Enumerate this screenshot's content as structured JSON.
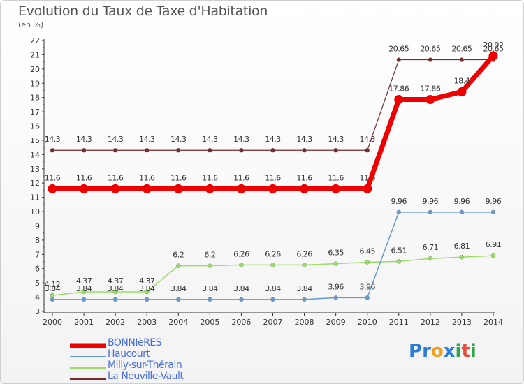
{
  "title": "Evolution du Taux de Taxe d'Habitation",
  "subtitle": "(en %)",
  "brand": {
    "name": "Proxiti",
    "letters": [
      "P",
      "r",
      "o",
      "x",
      "i",
      "t",
      "i"
    ],
    "colors": [
      "#2b7bd8",
      "#2b7bd8",
      "#f0a020",
      "#2b7bd8",
      "#2aa84a",
      "#e84c3d",
      "#2aa84a"
    ]
  },
  "chart_data": {
    "type": "line",
    "title": "Evolution du Taux de Taxe d'Habitation",
    "ylabel": "(en %)",
    "xlabel": "",
    "x": [
      "2000",
      "2001",
      "2002",
      "2003",
      "2004",
      "2005",
      "2006",
      "2007",
      "2008",
      "2009",
      "2010",
      "2011",
      "2012",
      "2013",
      "2014"
    ],
    "ylim": [
      3,
      22
    ],
    "yticks": [
      3,
      4,
      5,
      6,
      7,
      8,
      9,
      10,
      11,
      12,
      13,
      14,
      15,
      16,
      17,
      18,
      19,
      20,
      21,
      22
    ],
    "grid": false,
    "legend_position": "bottom-left",
    "series": [
      {
        "name": "BONNIèRES",
        "color": "#ee0000",
        "values": [
          11.6,
          11.6,
          11.6,
          11.6,
          11.6,
          11.6,
          11.6,
          11.6,
          11.6,
          11.6,
          11.6,
          17.86,
          17.86,
          18.4,
          20.92
        ],
        "labels": [
          "11.6",
          "11.6",
          "11.6",
          "11.6",
          "11.6",
          "11.6",
          "11.6",
          "11.6",
          "11.6",
          "11.6",
          "11.6",
          "17.86",
          "17.86",
          "18.4",
          "20.92"
        ]
      },
      {
        "name": "Haucourt",
        "color": "#6699cc",
        "values": [
          3.84,
          3.84,
          3.84,
          3.84,
          3.84,
          3.84,
          3.84,
          3.84,
          3.84,
          3.96,
          3.96,
          9.96,
          9.96,
          9.96,
          9.96
        ],
        "labels": [
          "3.84",
          "3.84",
          "3.84",
          "3.84",
          "3.84",
          "3.84",
          "3.84",
          "3.84",
          "3.84",
          "3.96",
          "3.96",
          "9.96",
          "9.96",
          "9.96",
          "9.96"
        ]
      },
      {
        "name": "Milly-sur-Thérain",
        "color": "#99dd66",
        "values": [
          4.12,
          4.37,
          4.37,
          4.37,
          6.2,
          6.2,
          6.26,
          6.26,
          6.26,
          6.35,
          6.45,
          6.51,
          6.71,
          6.81,
          6.91
        ],
        "labels": [
          "4.12",
          "4.37",
          "4.37",
          "4.37",
          "6.2",
          "6.2",
          "6.26",
          "6.26",
          "6.26",
          "6.35",
          "6.45",
          "6.51",
          "6.71",
          "6.81",
          "6.91"
        ]
      },
      {
        "name": "La Neuville-Vault",
        "color": "#7a2a2a",
        "values": [
          14.3,
          14.3,
          14.3,
          14.3,
          14.3,
          14.3,
          14.3,
          14.3,
          14.3,
          14.3,
          14.3,
          20.65,
          20.65,
          20.65,
          20.65
        ],
        "labels": [
          "14.3",
          "14.3",
          "14.3",
          "14.3",
          "14.3",
          "14.3",
          "14.3",
          "14.3",
          "14.3",
          "14.3",
          "14.3",
          "20.65",
          "20.65",
          "20.65",
          "20.65"
        ]
      }
    ]
  }
}
